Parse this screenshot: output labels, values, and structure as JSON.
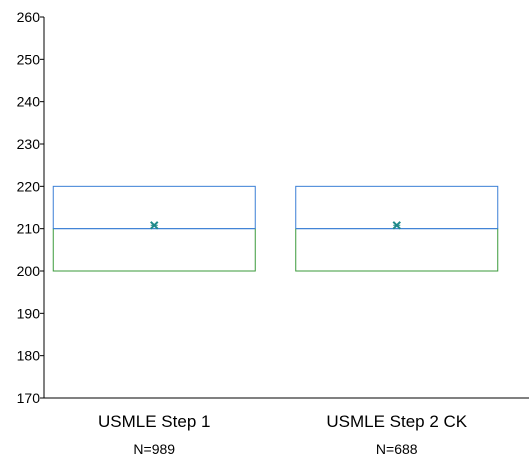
{
  "chart_data": {
    "type": "box",
    "title": "",
    "xlabel": "",
    "ylabel": "",
    "ylim": [
      170,
      260
    ],
    "yticks": [
      170,
      180,
      190,
      200,
      210,
      220,
      230,
      240,
      250,
      260
    ],
    "categories": [
      {
        "label": "USMLE Step 1",
        "n_label": "N=989",
        "q1": 200,
        "median": 210,
        "q3": 220,
        "mean": 210.8
      },
      {
        "label": "USMLE Step 2 CK",
        "n_label": "N=688",
        "q1": 200,
        "median": 210,
        "q3": 220,
        "mean": 210.8
      }
    ],
    "colors": {
      "upper_box": "#3a7fd5",
      "lower_box": "#3a9a3a",
      "mean_marker": "#1f8a8a",
      "axis": "#000000"
    },
    "grid": false
  }
}
